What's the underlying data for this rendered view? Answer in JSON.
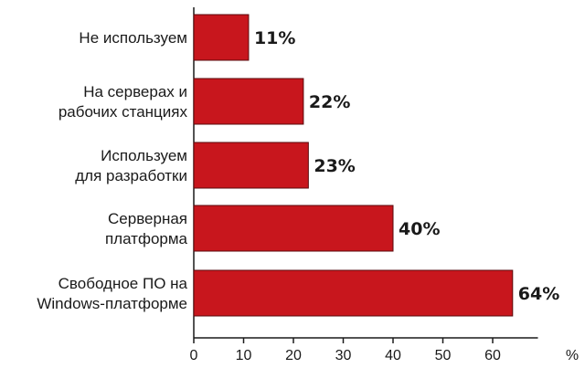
{
  "chart_data": {
    "type": "bar",
    "orientation": "horizontal",
    "categories": [
      [
        "Не используем"
      ],
      [
        "На серверах и",
        "рабочих станциях"
      ],
      [
        "Используем",
        "для разработки"
      ],
      [
        "Серверная",
        "платформа"
      ],
      [
        "Свободное ПО на",
        "Windows-платформе"
      ]
    ],
    "values": [
      11,
      22,
      23,
      40,
      64
    ],
    "value_labels": [
      "11%",
      "22%",
      "23%",
      "40%",
      "64%"
    ],
    "x_ticks": [
      "0",
      "10",
      "20",
      "30",
      "40",
      "50",
      "60"
    ],
    "x_unit": "%",
    "xlim": [
      0,
      70
    ],
    "grid": false,
    "bar_color": "#c8161d",
    "bar_border_color": "#5a0a0c",
    "text_color": "#1a1a1a"
  }
}
